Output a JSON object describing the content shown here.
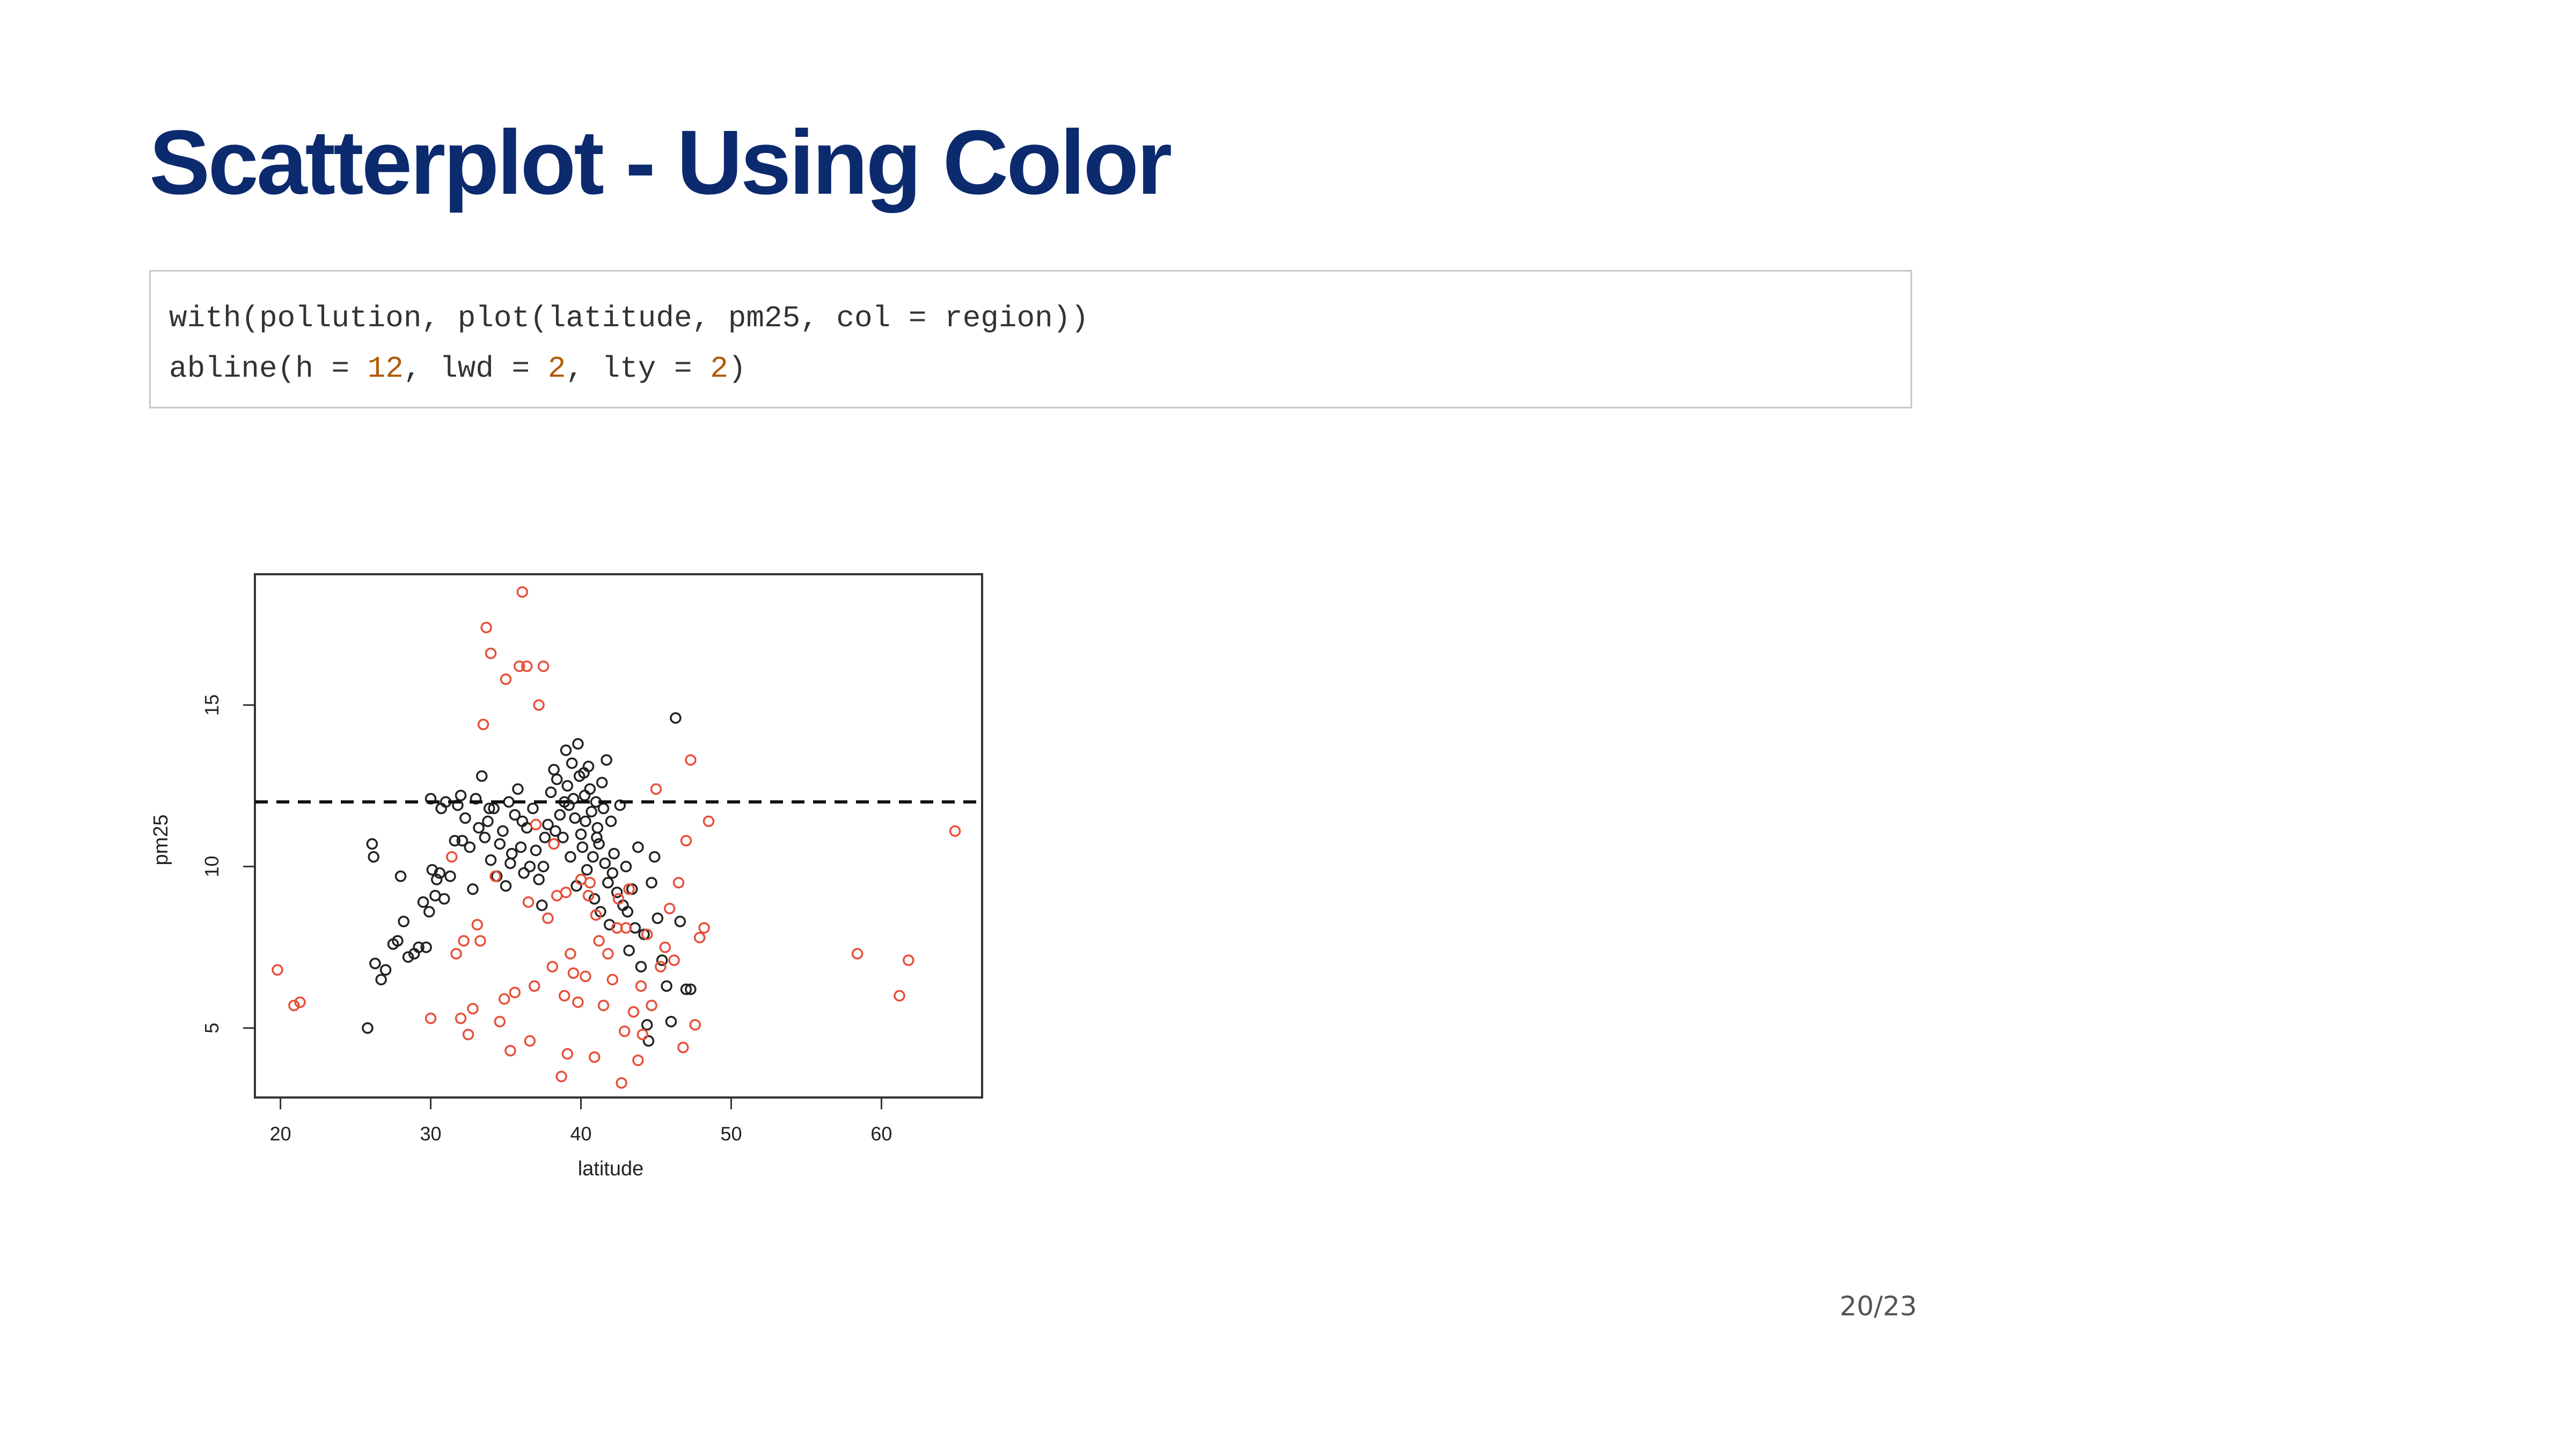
{
  "slide": {
    "title": "Scatterplot - Using Color",
    "page_number": "20/23"
  },
  "code": {
    "lines": [
      [
        {
          "t": "with(pollution, plot(latitude, pm25, col = region))",
          "k": "plain"
        }
      ],
      [
        {
          "t": "abline(h = ",
          "k": "plain"
        },
        {
          "t": "12",
          "k": "num"
        },
        {
          "t": ", lwd = ",
          "k": "plain"
        },
        {
          "t": "2",
          "k": "num"
        },
        {
          "t": ", lty = ",
          "k": "plain"
        },
        {
          "t": "2",
          "k": "num"
        },
        {
          "t": ")",
          "k": "plain"
        }
      ]
    ]
  },
  "colors": {
    "title": "#0c2a6e",
    "number_literal": "#b05a00",
    "series_black": "#222222",
    "series_red": "#e8503a"
  },
  "chart_data": {
    "type": "scatter",
    "title": "",
    "xlabel": "latitude",
    "ylabel": "pm25",
    "xlim": [
      18.3,
      66.7
    ],
    "ylim": [
      2.85,
      19.05
    ],
    "x_ticks": [
      20,
      30,
      40,
      50,
      60
    ],
    "y_ticks": [
      5,
      10,
      15
    ],
    "grid": false,
    "legend": "none",
    "hline": {
      "y": 12,
      "style": "dashed",
      "lwd": 2
    },
    "series": [
      {
        "color": "#222222",
        "points": [
          [
            25.8,
            5.0
          ],
          [
            26.1,
            10.7
          ],
          [
            26.2,
            10.3
          ],
          [
            26.3,
            7.0
          ],
          [
            26.7,
            6.5
          ],
          [
            27.0,
            6.8
          ],
          [
            27.5,
            7.6
          ],
          [
            27.8,
            7.7
          ],
          [
            28.0,
            9.7
          ],
          [
            28.2,
            8.3
          ],
          [
            28.5,
            7.2
          ],
          [
            28.9,
            7.3
          ],
          [
            29.2,
            7.5
          ],
          [
            29.5,
            8.9
          ],
          [
            29.7,
            7.5
          ],
          [
            29.9,
            8.6
          ],
          [
            30.0,
            12.1
          ],
          [
            30.1,
            9.9
          ],
          [
            30.3,
            9.1
          ],
          [
            30.4,
            9.6
          ],
          [
            30.6,
            9.8
          ],
          [
            30.7,
            11.8
          ],
          [
            30.9,
            9.0
          ],
          [
            31.0,
            12.0
          ],
          [
            31.3,
            9.7
          ],
          [
            31.6,
            10.8
          ],
          [
            31.8,
            11.9
          ],
          [
            32.0,
            12.2
          ],
          [
            32.3,
            11.5
          ],
          [
            32.6,
            10.6
          ],
          [
            32.8,
            9.3
          ],
          [
            33.0,
            12.1
          ],
          [
            33.2,
            11.2
          ],
          [
            33.4,
            12.8
          ],
          [
            33.6,
            10.9
          ],
          [
            33.8,
            11.4
          ],
          [
            34.0,
            10.2
          ],
          [
            34.2,
            11.8
          ],
          [
            34.4,
            9.7
          ],
          [
            34.6,
            10.7
          ],
          [
            34.8,
            11.1
          ],
          [
            35.0,
            9.4
          ],
          [
            35.2,
            12.0
          ],
          [
            35.4,
            10.4
          ],
          [
            35.6,
            11.6
          ],
          [
            35.8,
            12.4
          ],
          [
            36.0,
            10.6
          ],
          [
            36.2,
            9.8
          ],
          [
            36.4,
            11.2
          ],
          [
            36.6,
            10.0
          ],
          [
            36.8,
            11.8
          ],
          [
            37.0,
            10.5
          ],
          [
            37.2,
            9.6
          ],
          [
            37.4,
            8.8
          ],
          [
            37.6,
            10.9
          ],
          [
            37.8,
            11.3
          ],
          [
            38.0,
            12.3
          ],
          [
            38.2,
            13.0
          ],
          [
            38.4,
            12.7
          ],
          [
            38.6,
            11.6
          ],
          [
            38.8,
            10.9
          ],
          [
            39.0,
            13.6
          ],
          [
            39.1,
            12.5
          ],
          [
            39.2,
            11.9
          ],
          [
            39.3,
            10.3
          ],
          [
            39.4,
            13.2
          ],
          [
            39.5,
            12.1
          ],
          [
            39.6,
            11.5
          ],
          [
            39.7,
            9.4
          ],
          [
            39.8,
            13.8
          ],
          [
            39.9,
            12.8
          ],
          [
            40.0,
            11.0
          ],
          [
            40.1,
            10.6
          ],
          [
            40.2,
            12.9
          ],
          [
            40.3,
            11.4
          ],
          [
            40.4,
            9.9
          ],
          [
            40.5,
            13.1
          ],
          [
            40.6,
            12.4
          ],
          [
            40.7,
            11.7
          ],
          [
            40.8,
            10.3
          ],
          [
            40.9,
            9.0
          ],
          [
            41.0,
            12.0
          ],
          [
            41.1,
            11.2
          ],
          [
            41.2,
            10.7
          ],
          [
            41.3,
            8.6
          ],
          [
            41.4,
            12.6
          ],
          [
            41.5,
            11.8
          ],
          [
            41.6,
            10.1
          ],
          [
            41.7,
            13.3
          ],
          [
            41.8,
            9.5
          ],
          [
            41.9,
            8.2
          ],
          [
            42.0,
            11.4
          ],
          [
            42.2,
            10.4
          ],
          [
            42.4,
            9.2
          ],
          [
            42.6,
            11.9
          ],
          [
            42.8,
            8.8
          ],
          [
            43.0,
            10.0
          ],
          [
            43.2,
            7.4
          ],
          [
            43.4,
            9.3
          ],
          [
            43.6,
            8.1
          ],
          [
            43.8,
            10.6
          ],
          [
            44.0,
            6.9
          ],
          [
            44.2,
            7.9
          ],
          [
            44.4,
            5.1
          ],
          [
            44.5,
            4.6
          ],
          [
            44.7,
            9.5
          ],
          [
            44.9,
            10.3
          ],
          [
            45.1,
            8.4
          ],
          [
            45.4,
            7.1
          ],
          [
            45.7,
            6.3
          ],
          [
            46.0,
            5.2
          ],
          [
            46.3,
            14.6
          ],
          [
            46.6,
            8.3
          ],
          [
            47.0,
            6.2
          ],
          [
            47.3,
            6.2
          ],
          [
            32.1,
            10.8
          ],
          [
            33.9,
            11.8
          ],
          [
            35.3,
            10.1
          ],
          [
            36.1,
            11.4
          ],
          [
            37.5,
            10.0
          ],
          [
            38.3,
            11.1
          ],
          [
            38.9,
            12.0
          ],
          [
            40.25,
            12.2
          ],
          [
            41.05,
            10.9
          ],
          [
            42.1,
            9.8
          ],
          [
            43.1,
            8.6
          ]
        ]
      },
      {
        "color": "#e8503a",
        "points": [
          [
            19.8,
            6.8
          ],
          [
            20.9,
            5.7
          ],
          [
            21.3,
            5.8
          ],
          [
            30.0,
            5.3
          ],
          [
            31.4,
            10.3
          ],
          [
            31.7,
            7.3
          ],
          [
            32.0,
            5.3
          ],
          [
            32.2,
            7.7
          ],
          [
            32.5,
            4.8
          ],
          [
            32.8,
            5.6
          ],
          [
            33.1,
            8.2
          ],
          [
            33.3,
            7.7
          ],
          [
            33.5,
            14.4
          ],
          [
            33.7,
            17.4
          ],
          [
            34.0,
            16.6
          ],
          [
            34.3,
            9.7
          ],
          [
            34.6,
            5.2
          ],
          [
            34.9,
            5.9
          ],
          [
            35.0,
            15.8
          ],
          [
            35.3,
            4.3
          ],
          [
            35.6,
            6.1
          ],
          [
            35.9,
            16.2
          ],
          [
            36.1,
            18.5
          ],
          [
            36.4,
            16.2
          ],
          [
            36.6,
            4.6
          ],
          [
            36.9,
            6.3
          ],
          [
            37.2,
            15.0
          ],
          [
            37.5,
            16.2
          ],
          [
            37.8,
            8.4
          ],
          [
            38.1,
            6.9
          ],
          [
            38.4,
            9.1
          ],
          [
            38.7,
            3.5
          ],
          [
            38.9,
            6.0
          ],
          [
            39.1,
            4.2
          ],
          [
            39.3,
            7.3
          ],
          [
            39.5,
            6.7
          ],
          [
            39.8,
            5.8
          ],
          [
            40.0,
            9.6
          ],
          [
            40.3,
            6.6
          ],
          [
            40.6,
            9.5
          ],
          [
            40.9,
            4.1
          ],
          [
            41.2,
            7.7
          ],
          [
            41.5,
            5.7
          ],
          [
            41.8,
            7.3
          ],
          [
            42.1,
            6.5
          ],
          [
            42.4,
            8.1
          ],
          [
            42.7,
            3.3
          ],
          [
            42.9,
            4.9
          ],
          [
            43.2,
            9.3
          ],
          [
            43.5,
            5.5
          ],
          [
            43.8,
            4.0
          ],
          [
            44.1,
            4.8
          ],
          [
            44.4,
            7.9
          ],
          [
            44.7,
            5.7
          ],
          [
            45.0,
            12.4
          ],
          [
            45.3,
            6.9
          ],
          [
            45.6,
            7.5
          ],
          [
            45.9,
            8.7
          ],
          [
            46.2,
            7.1
          ],
          [
            46.5,
            9.5
          ],
          [
            46.8,
            4.4
          ],
          [
            47.0,
            10.8
          ],
          [
            47.3,
            13.3
          ],
          [
            47.6,
            5.1
          ],
          [
            47.9,
            7.8
          ],
          [
            48.2,
            8.1
          ],
          [
            48.5,
            11.4
          ],
          [
            58.4,
            7.3
          ],
          [
            61.2,
            6.0
          ],
          [
            61.8,
            7.1
          ],
          [
            64.9,
            11.1
          ],
          [
            37.0,
            11.3
          ],
          [
            38.2,
            10.7
          ],
          [
            39.0,
            9.2
          ],
          [
            40.5,
            9.1
          ],
          [
            41.0,
            8.5
          ],
          [
            42.5,
            9.0
          ],
          [
            43.0,
            8.1
          ],
          [
            44.0,
            6.3
          ],
          [
            36.5,
            8.9
          ]
        ]
      }
    ]
  }
}
